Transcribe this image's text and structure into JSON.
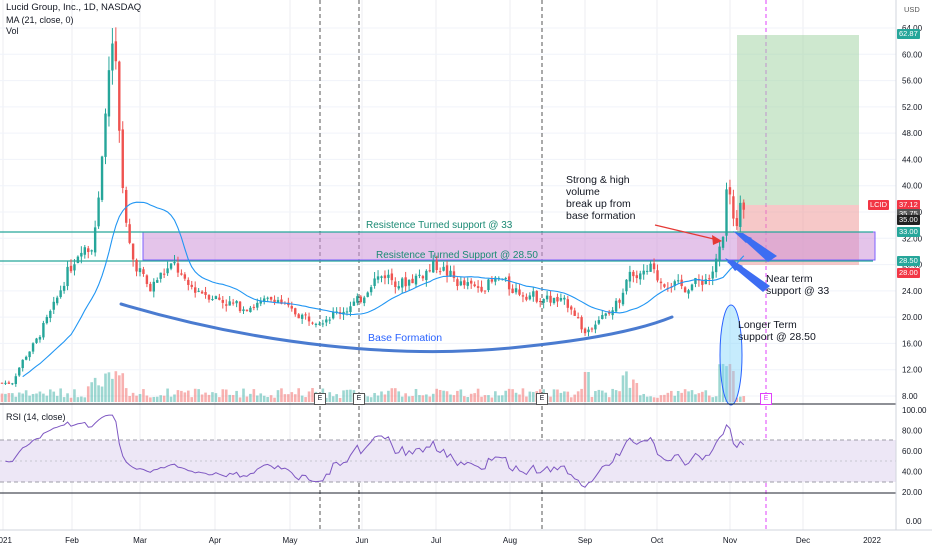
{
  "header": {
    "title": "Lucid Group, Inc., 1D, NASDAQ",
    "indicator_ma": "MA (21, close, 0)",
    "indicator_vol": "Vol",
    "currency": "USD"
  },
  "colors": {
    "up": "#26a69a",
    "down": "#ef5350",
    "ma": "#2196f3",
    "zone_purple": "#ce93d8",
    "profit": "#a5d6a7",
    "loss": "#ef9a9a",
    "rsi": "#7e57c2"
  },
  "annotations": {
    "note_breakout": [
      "Strong & high",
      "volume",
      "break up from",
      "base formation"
    ],
    "resistance_33": "Resistence Turned support @ 33",
    "resistance_2850": "Resistence Turned Support @ 28.50",
    "base_formation": "Base Formation",
    "near_term": [
      "Near term",
      "support @ 33"
    ],
    "longer_term": [
      "Longer Term",
      "support @ 28.50"
    ]
  },
  "price_tags": {
    "target": "62.87",
    "last": "37.12",
    "last_label": "LCID",
    "t3575": "35.75",
    "t35": "35.00",
    "t33": "33.00",
    "t2850": "28.50",
    "t28": "28.00"
  },
  "earnings_label": "E",
  "chart_data": {
    "type": "candlestick",
    "title": "Lucid Group, Inc., 1D, NASDAQ",
    "currency": "USD",
    "price_axis": {
      "min": 6,
      "max": 66,
      "ticks": [
        8,
        12,
        16,
        20,
        24,
        28,
        32,
        36,
        40,
        44,
        48,
        52,
        56,
        60,
        64
      ],
      "tick_labels": [
        "8.00",
        "12.00",
        "16.00",
        "20.00",
        "24.00",
        "28.00",
        "32.00",
        "36.00",
        "40.00",
        "44.00",
        "48.00",
        "52.00",
        "56.00",
        "60.00",
        "64.00"
      ]
    },
    "time_axis": {
      "labels": [
        "2021",
        "Feb",
        "Mar",
        "Apr",
        "May",
        "Jun",
        "Jul",
        "Aug",
        "Sep",
        "Oct",
        "Nov",
        "Dec",
        "2022"
      ]
    },
    "series": [
      {
        "name": "LCID",
        "kind": "candlestick",
        "x": [
          "2021-01",
          "2021-02-01",
          "2021-02-10",
          "2021-02-18",
          "2021-02-23",
          "2021-03-05",
          "2021-03-20",
          "2021-04-10",
          "2021-05-05",
          "2021-05-25",
          "2021-06-10",
          "2021-06-30",
          "2021-07-20",
          "2021-08-10",
          "2021-08-30",
          "2021-09-10",
          "2021-09-25",
          "2021-10-15",
          "2021-10-27",
          "2021-11-01",
          "2021-11-04"
        ],
        "close": [
          10,
          14,
          24,
          55,
          58,
          27,
          26,
          23,
          19,
          18,
          22,
          27,
          24,
          24,
          17,
          21,
          27,
          24,
          31,
          39,
          36
        ]
      },
      {
        "name": "MA (21, close, 0)",
        "kind": "line"
      }
    ],
    "levels": [
      {
        "label": "Resistence Turned support @ 33",
        "value": 33
      },
      {
        "label": "Resistence Turned Support @ 28.50",
        "value": 28.5
      }
    ],
    "zone": {
      "low": 28.5,
      "high": 33
    },
    "position": {
      "target": 62.87,
      "entry": 35.75,
      "stop": 28.0
    },
    "last_price": 37.12,
    "rsi": {
      "name": "RSI (14, close)",
      "levels": [
        30,
        70
      ],
      "ticks": [
        20,
        40,
        60,
        80,
        100
      ],
      "tick_labels": [
        "20.00",
        "40.00",
        "60.00",
        "80.00",
        "100.00"
      ],
      "last": 77
    }
  }
}
